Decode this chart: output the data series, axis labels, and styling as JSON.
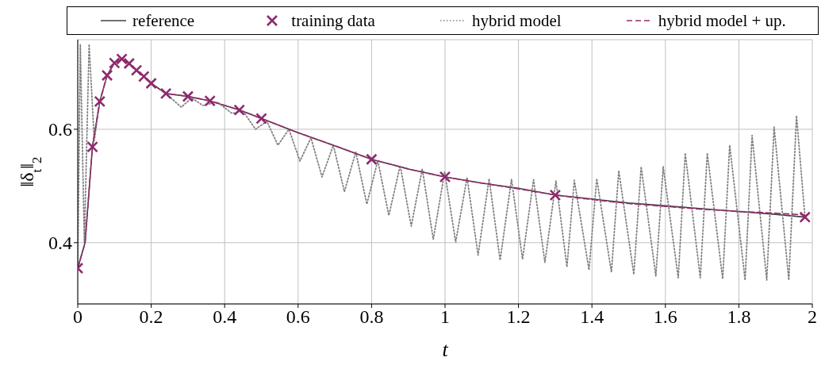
{
  "chart_data": {
    "type": "line",
    "xlabel": "t",
    "ylabel": "‖δ$_{t}$‖$_{2}$",
    "xlim": [
      0,
      2
    ],
    "ylim": [
      0.292,
      0.758
    ],
    "xticks": [
      0,
      0.2,
      0.4,
      0.6,
      0.8,
      1,
      1.2,
      1.4,
      1.6,
      1.8,
      2
    ],
    "yticks": [
      0.4,
      0.6
    ],
    "grid": true,
    "legend": "top",
    "marker": "none",
    "series": [
      {
        "name": "reference",
        "color": "#404040",
        "line_style": "solid",
        "x": [
          0,
          0.02,
          0.04,
          0.06,
          0.08,
          0.1,
          0.12,
          0.14,
          0.16,
          0.18,
          0.2,
          0.24,
          0.3,
          0.36,
          0.44,
          0.5,
          0.6,
          0.7,
          0.8,
          0.9,
          1,
          1.1,
          1.2,
          1.3,
          1.4,
          1.5,
          1.6,
          1.7,
          1.8,
          1.9,
          1.98
        ],
        "values": [
          0.355,
          0.4,
          0.569,
          0.649,
          0.695,
          0.717,
          0.724,
          0.716,
          0.704,
          0.693,
          0.681,
          0.663,
          0.658,
          0.65,
          0.634,
          0.619,
          0.594,
          0.571,
          0.547,
          0.53,
          0.516,
          0.505,
          0.496,
          0.484,
          0.477,
          0.47,
          0.465,
          0.46,
          0.455,
          0.45,
          0.445
        ]
      },
      {
        "name": "training data",
        "type": "scatter",
        "marker": "cross",
        "color": "#8e2a6e",
        "x": [
          0,
          0.04,
          0.06,
          0.08,
          0.1,
          0.12,
          0.14,
          0.16,
          0.18,
          0.2,
          0.24,
          0.3,
          0.36,
          0.44,
          0.5,
          0.8,
          1,
          1.3,
          1.98
        ],
        "values": [
          0.355,
          0.569,
          0.649,
          0.695,
          0.717,
          0.724,
          0.716,
          0.704,
          0.693,
          0.681,
          0.663,
          0.658,
          0.65,
          0.634,
          0.619,
          0.547,
          0.516,
          0.484,
          0.445
        ]
      },
      {
        "name": "hybrid model",
        "color": "#808080",
        "line_style": "dotted",
        "x": [
          0,
          0.007,
          0.018,
          0.031,
          0.045,
          0.06,
          0.08,
          0.1,
          0.12,
          0.14,
          0.16,
          0.18,
          0.2,
          0.24,
          0.282,
          0.31,
          0.341,
          0.38,
          0.42,
          0.45,
          0.484,
          0.515,
          0.545,
          0.575,
          0.605,
          0.635,
          0.665,
          0.696,
          0.726,
          0.757,
          0.787,
          0.817,
          0.847,
          0.878,
          0.908,
          0.938,
          0.968,
          0.999,
          1.029,
          1.06,
          1.09,
          1.12,
          1.15,
          1.181,
          1.211,
          1.241,
          1.272,
          1.302,
          1.332,
          1.352,
          1.392,
          1.413,
          1.453,
          1.473,
          1.514,
          1.534,
          1.574,
          1.594,
          1.635,
          1.654,
          1.695,
          1.714,
          1.756,
          1.775,
          1.817,
          1.836,
          1.876,
          1.896,
          1.936,
          1.957,
          1.98
        ],
        "values": [
          0.355,
          0.75,
          0.4,
          0.75,
          0.58,
          0.649,
          0.695,
          0.717,
          0.724,
          0.716,
          0.704,
          0.693,
          0.681,
          0.663,
          0.639,
          0.655,
          0.642,
          0.648,
          0.628,
          0.632,
          0.6,
          0.614,
          0.572,
          0.6,
          0.544,
          0.585,
          0.516,
          0.572,
          0.49,
          0.56,
          0.468,
          0.545,
          0.448,
          0.536,
          0.429,
          0.53,
          0.406,
          0.525,
          0.401,
          0.515,
          0.378,
          0.513,
          0.369,
          0.512,
          0.371,
          0.511,
          0.365,
          0.509,
          0.357,
          0.51,
          0.352,
          0.513,
          0.348,
          0.527,
          0.344,
          0.534,
          0.341,
          0.534,
          0.338,
          0.558,
          0.338,
          0.558,
          0.336,
          0.572,
          0.334,
          0.589,
          0.334,
          0.604,
          0.334,
          0.624,
          0.445
        ]
      },
      {
        "name": "hybrid model + up.",
        "color": "#9b2a6e",
        "line_style": "dashed",
        "x": [
          0,
          0.02,
          0.04,
          0.06,
          0.08,
          0.1,
          0.12,
          0.14,
          0.16,
          0.18,
          0.2,
          0.24,
          0.3,
          0.36,
          0.44,
          0.5,
          0.6,
          0.7,
          0.8,
          0.9,
          1,
          1.1,
          1.2,
          1.3,
          1.4,
          1.5,
          1.6,
          1.7,
          1.8,
          1.9,
          1.98
        ],
        "values": [
          0.355,
          0.4,
          0.569,
          0.649,
          0.695,
          0.717,
          0.724,
          0.716,
          0.704,
          0.693,
          0.681,
          0.663,
          0.658,
          0.65,
          0.634,
          0.619,
          0.594,
          0.571,
          0.547,
          0.53,
          0.516,
          0.505,
          0.495,
          0.484,
          0.476,
          0.469,
          0.464,
          0.459,
          0.455,
          0.452,
          0.449
        ]
      }
    ]
  }
}
